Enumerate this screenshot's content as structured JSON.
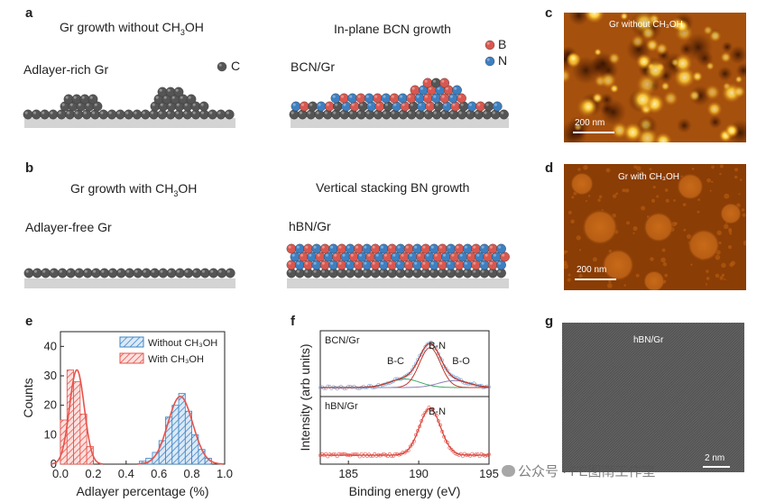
{
  "panels": {
    "a": {
      "letter": "a",
      "left_title": "Gr growth without CH",
      "left_title_sub": "3",
      "left_title_end": "OH",
      "right_title": "In-plane BCN growth",
      "left_label": "Adlayer-rich Gr",
      "right_label": "BCN/Gr",
      "legend_c": "C",
      "legend_b": "B",
      "legend_n": "N"
    },
    "b": {
      "letter": "b",
      "left_title": "Gr growth with CH",
      "left_title_sub": "3",
      "left_title_end": "OH",
      "right_title": "Vertical stacking BN growth",
      "left_label": "Adlayer-free Gr",
      "right_label": "hBN/Gr"
    },
    "c": {
      "letter": "c",
      "caption": "Gr without  CH₃OH",
      "scale": "200 nm"
    },
    "d": {
      "letter": "d",
      "caption": "Gr with  CH₃OH",
      "scale": "200 nm"
    },
    "e": {
      "letter": "e"
    },
    "f": {
      "letter": "f"
    },
    "g": {
      "letter": "g",
      "caption": "hBN/Gr",
      "scale": "2 nm"
    }
  },
  "colors": {
    "carbon": "#555555",
    "boron": "#d9574f",
    "nitrogen": "#3d7fc1",
    "substrate": "#d4d4d4",
    "red_series": "#e8524a",
    "blue_series": "#3d85c6",
    "afm_bg": "#8a3d05",
    "afm_bright": "#ffd24a"
  },
  "watermark": "公众号 · FE图南工作室",
  "chart_data": [
    {
      "type": "bar",
      "panel": "e",
      "xlabel": "Adlayer percentage (%)",
      "ylabel": "Counts",
      "xlim": [
        0,
        1.0
      ],
      "ylim": [
        0,
        45
      ],
      "xticks": [
        "0.0",
        "0.2",
        "0.4",
        "0.6",
        "0.8",
        "1.0"
      ],
      "yticks": [
        "0",
        "10",
        "20",
        "30",
        "40"
      ],
      "legend": [
        "Without CH₃OH",
        "With CH₃OH"
      ],
      "series": [
        {
          "name": "With CH₃OH",
          "color": "red",
          "bin_edges": [
            0.0,
            0.04,
            0.08,
            0.12,
            0.16,
            0.2,
            0.24
          ],
          "values": [
            15,
            32,
            28,
            17,
            6,
            0
          ]
        },
        {
          "name": "Without CH₃OH",
          "color": "blue",
          "bin_edges": [
            0.48,
            0.52,
            0.56,
            0.6,
            0.64,
            0.68,
            0.72,
            0.76,
            0.8,
            0.84,
            0.88,
            0.92
          ],
          "values": [
            1,
            2,
            4,
            8,
            16,
            20,
            24,
            18,
            10,
            5,
            2
          ]
        }
      ],
      "fits": [
        {
          "series": "With CH₃OH",
          "mean": 0.1,
          "sigma": 0.045,
          "amp": 32
        },
        {
          "series": "Without CH₃OH",
          "mean": 0.73,
          "sigma": 0.075,
          "amp": 23
        }
      ]
    },
    {
      "type": "line",
      "panel": "f",
      "xlabel": "Binding energy (eV)",
      "ylabel": "Intensity (arb units)",
      "xlim": [
        183,
        195
      ],
      "xticks": [
        "185",
        "190",
        "195"
      ],
      "subplots": [
        {
          "label": "BCN/Gr",
          "peaks": [
            {
              "name": "B-C",
              "center": 189.0,
              "amp": 0.16
            },
            {
              "name": "B-N",
              "center": 190.8,
              "amp": 0.75
            },
            {
              "name": "B-O",
              "center": 192.5,
              "amp": 0.13
            }
          ]
        },
        {
          "label": "hBN/Gr",
          "peaks": [
            {
              "name": "B-N",
              "center": 190.8,
              "amp": 0.85
            }
          ]
        }
      ]
    }
  ]
}
